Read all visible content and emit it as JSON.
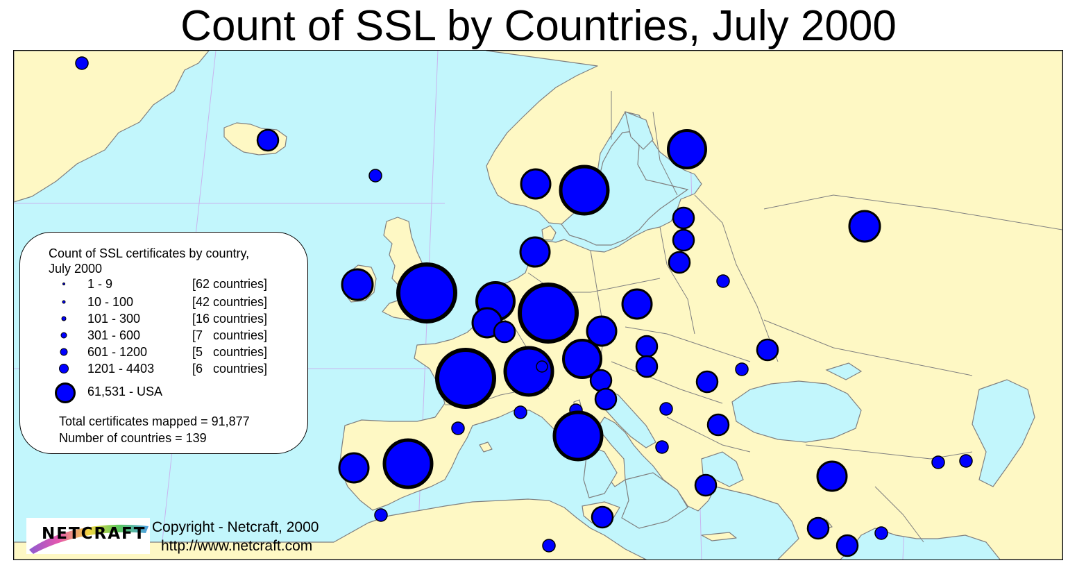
{
  "title": "Count of SSL by Countries, July 2000",
  "colors": {
    "sea": "#c2f6fc",
    "land": "#fef8c4",
    "border": "#7f7f7f",
    "marker": "#0000ff",
    "marker_outline": "#000000"
  },
  "legend": {
    "title": "Count of SSL certificates by country,\nJuly 2000",
    "classes": [
      {
        "range": "1 - 9",
        "countries": "[62 countries]"
      },
      {
        "range": "10 - 100",
        "countries": "[42 countries]"
      },
      {
        "range": "101 - 300",
        "countries": "[16 countries]"
      },
      {
        "range": "301 - 600",
        "countries": "[7   countries]"
      },
      {
        "range": "601 - 1200",
        "countries": "[5   countries]"
      },
      {
        "range": "1201 - 4403",
        "countries": "[6   countries]"
      },
      {
        "range": "61,531  - USA",
        "countries": ""
      }
    ],
    "total": "Total certificates mapped = 91,877",
    "countries": "Number of countries = 139"
  },
  "logo": {
    "text": "NETCRAFT"
  },
  "copyright": "Copyright - Netcraft, 2000",
  "url": "http://www.netcraft.com"
}
